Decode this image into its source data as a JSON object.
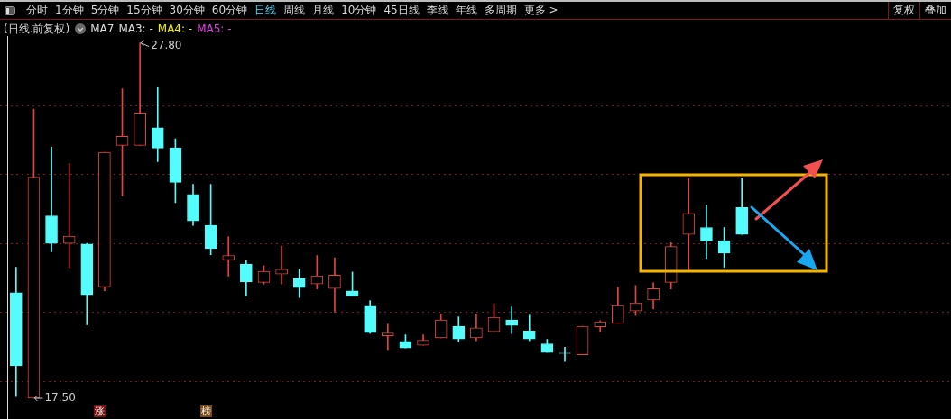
{
  "chart_data": {
    "type": "candlestick",
    "title": "(日线.前复权)",
    "categories": [
      null,
      null,
      null,
      null,
      null,
      null,
      null,
      null,
      null,
      null,
      null,
      null,
      null,
      null,
      null,
      null,
      null,
      null,
      null,
      null,
      null,
      null,
      null,
      null,
      null,
      null,
      null,
      null,
      null,
      null,
      null,
      null,
      null,
      null,
      null,
      null,
      null,
      null,
      null,
      null,
      null,
      null
    ],
    "ohlc": [
      [
        20.56,
        21.3,
        17.55,
        18.44
      ],
      [
        17.5,
        25.88,
        17.5,
        23.91
      ],
      [
        22.79,
        24.78,
        21.75,
        21.99
      ],
      [
        21.99,
        24.3,
        21.28,
        22.2
      ],
      [
        21.97,
        21.99,
        19.63,
        20.5
      ],
      [
        20.73,
        24.63,
        20.62,
        24.63
      ],
      [
        24.83,
        26.47,
        23.36,
        25.09
      ],
      [
        24.83,
        27.8,
        24.83,
        25.77
      ],
      [
        25.34,
        26.53,
        24.36,
        24.75
      ],
      [
        24.76,
        25.02,
        23.17,
        23.76
      ],
      [
        23.41,
        23.7,
        22.51,
        22.64
      ],
      [
        22.51,
        23.7,
        21.66,
        21.84
      ],
      [
        21.51,
        22.18,
        21.04,
        21.64
      ],
      [
        21.39,
        21.49,
        20.46,
        20.88
      ],
      [
        20.86,
        21.34,
        20.81,
        21.18
      ],
      [
        21.1,
        21.91,
        20.81,
        21.24
      ],
      [
        20.98,
        21.24,
        20.42,
        20.71
      ],
      [
        20.81,
        21.64,
        20.67,
        21.05
      ],
      [
        20.68,
        21.57,
        20.0,
        21.07
      ],
      [
        20.61,
        21.16,
        20.46,
        20.46
      ],
      [
        20.17,
        20.33,
        19.38,
        19.4
      ],
      [
        19.31,
        19.65,
        18.91,
        19.39
      ],
      [
        19.15,
        19.34,
        18.96,
        18.96
      ],
      [
        19.04,
        19.34,
        19.04,
        19.18
      ],
      [
        19.25,
        19.95,
        19.25,
        19.77
      ],
      [
        19.59,
        19.86,
        19.14,
        19.22
      ],
      [
        19.25,
        19.94,
        19.17,
        19.54
      ],
      [
        19.43,
        20.25,
        19.43,
        19.85
      ],
      [
        19.77,
        20.15,
        19.38,
        19.61
      ],
      [
        19.45,
        19.91,
        19.17,
        19.22
      ],
      [
        19.08,
        19.21,
        18.83,
        18.83
      ],
      [
        18.81,
        18.98,
        18.57,
        18.8
      ],
      [
        18.76,
        19.59,
        18.76,
        19.59
      ],
      [
        19.57,
        19.75,
        19.43,
        19.72
      ],
      [
        19.67,
        20.72,
        19.67,
        20.19
      ],
      [
        20.03,
        20.77,
        19.9,
        20.27
      ],
      [
        20.35,
        20.85,
        20.09,
        20.68
      ],
      [
        20.86,
        22.01,
        20.67,
        21.9
      ],
      [
        22.25,
        23.87,
        21.23,
        22.86
      ],
      [
        22.45,
        23.1,
        21.55,
        22.06
      ],
      [
        22.07,
        22.45,
        21.3,
        21.71
      ],
      [
        23.03,
        23.87,
        22.25,
        22.25
      ]
    ],
    "colors": [
      "#54fcfc",
      "#e0463c",
      "#54fcfc",
      "#e0463c",
      "#54fcfc",
      "#e0463c",
      "#e0463c",
      "#e0463c",
      "#54fcfc",
      "#54fcfc",
      "#54fcfc",
      "#54fcfc",
      "#e0463c",
      "#54fcfc",
      "#e0463c",
      "#e0463c",
      "#54fcfc",
      "#e0463c",
      "#e0463c",
      "#54fcfc",
      "#54fcfc",
      "#e0463c",
      "#54fcfc",
      "#e0463c",
      "#e0463c",
      "#54fcfc",
      "#e0463c",
      "#e0463c",
      "#54fcfc",
      "#54fcfc",
      "#54fcfc",
      "#54fcfc",
      "#e0463c",
      "#e0463c",
      "#e0463c",
      "#e0463c",
      "#e0463c",
      "#e0463c",
      "#e0463c",
      "#54fcfc",
      "#54fcfc",
      "#54fcfc"
    ],
    "ylim": [
      16.9,
      28.0
    ],
    "yticks": [
      {
        "value": 18,
        "label": null
      },
      {
        "value": 20,
        "label": null
      },
      {
        "value": 22,
        "label": null
      },
      {
        "value": 24,
        "label": null
      },
      {
        "value": 26,
        "label": null
      }
    ],
    "grid": "y",
    "legend": false,
    "tick_labels": false,
    "annotations": [
      "分时",
      "1分钟",
      "5分钟",
      "15分钟",
      "30分钟",
      "60分钟",
      "日线",
      "周线",
      "月线",
      "10分钟",
      "45日线",
      "季线",
      "年线",
      "多周期",
      "更多 >",
      "复权",
      "叠加",
      "MA7",
      "MA3: -",
      "MA4: -",
      "MA5: -",
      "27.80",
      "17.50",
      "涨",
      "榜"
    ]
  }
}
